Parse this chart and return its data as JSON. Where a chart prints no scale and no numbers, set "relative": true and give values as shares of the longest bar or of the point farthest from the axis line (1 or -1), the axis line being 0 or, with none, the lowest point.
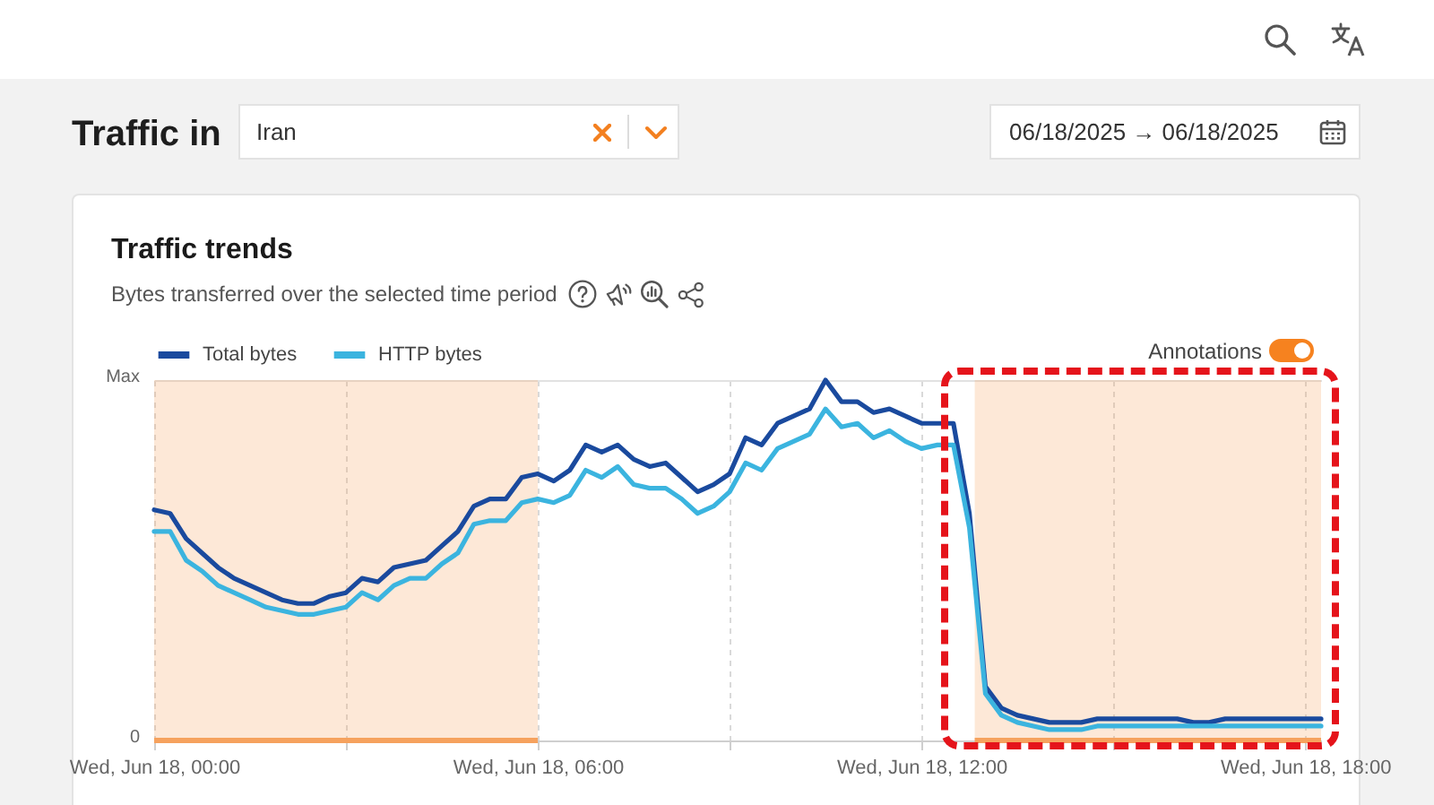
{
  "chart_data": {
    "type": "line",
    "title": "Traffic trends",
    "subtitle": "Bytes transferred over the selected time period",
    "annotations": [
      "Traffic in",
      "Iran",
      "06/18/2025 → 06/18/2025",
      "Annotations",
      "Max",
      "0"
    ],
    "relative": true,
    "x": [
      "2025-06-18T00:00",
      "2025-06-18T00:15",
      "2025-06-18T00:30",
      "2025-06-18T00:45",
      "2025-06-18T01:00",
      "2025-06-18T01:15",
      "2025-06-18T01:30",
      "2025-06-18T01:45",
      "2025-06-18T02:00",
      "2025-06-18T02:15",
      "2025-06-18T02:30",
      "2025-06-18T02:45",
      "2025-06-18T03:00",
      "2025-06-18T03:15",
      "2025-06-18T03:30",
      "2025-06-18T03:45",
      "2025-06-18T04:00",
      "2025-06-18T04:15",
      "2025-06-18T04:30",
      "2025-06-18T04:45",
      "2025-06-18T05:00",
      "2025-06-18T05:15",
      "2025-06-18T05:30",
      "2025-06-18T05:45",
      "2025-06-18T06:00",
      "2025-06-18T06:15",
      "2025-06-18T06:30",
      "2025-06-18T06:45",
      "2025-06-18T07:00",
      "2025-06-18T07:15",
      "2025-06-18T07:30",
      "2025-06-18T07:45",
      "2025-06-18T08:00",
      "2025-06-18T08:15",
      "2025-06-18T08:30",
      "2025-06-18T08:45",
      "2025-06-18T09:00",
      "2025-06-18T09:15",
      "2025-06-18T09:30",
      "2025-06-18T09:45",
      "2025-06-18T10:00",
      "2025-06-18T10:15",
      "2025-06-18T10:30",
      "2025-06-18T10:45",
      "2025-06-18T11:00",
      "2025-06-18T11:15",
      "2025-06-18T11:30",
      "2025-06-18T11:45",
      "2025-06-18T12:00",
      "2025-06-18T12:15",
      "2025-06-18T12:30",
      "2025-06-18T12:45",
      "2025-06-18T13:00",
      "2025-06-18T13:15",
      "2025-06-18T13:30",
      "2025-06-18T13:45",
      "2025-06-18T14:00",
      "2025-06-18T14:15",
      "2025-06-18T14:30",
      "2025-06-18T14:45",
      "2025-06-18T15:00",
      "2025-06-18T15:15",
      "2025-06-18T15:30",
      "2025-06-18T15:45",
      "2025-06-18T16:00",
      "2025-06-18T16:15",
      "2025-06-18T16:30",
      "2025-06-18T16:45",
      "2025-06-18T17:00",
      "2025-06-18T17:15",
      "2025-06-18T17:30",
      "2025-06-18T17:45",
      "2025-06-18T18:00",
      "2025-06-18T18:15"
    ],
    "series": [
      {
        "name": "Total bytes",
        "color": "#1a4a9e",
        "values": [
          0.64,
          0.63,
          0.56,
          0.52,
          0.48,
          0.45,
          0.43,
          0.41,
          0.39,
          0.38,
          0.38,
          0.4,
          0.41,
          0.45,
          0.44,
          0.48,
          0.49,
          0.5,
          0.54,
          0.58,
          0.65,
          0.67,
          0.67,
          0.73,
          0.74,
          0.72,
          0.75,
          0.82,
          0.8,
          0.82,
          0.78,
          0.76,
          0.77,
          0.73,
          0.69,
          0.71,
          0.74,
          0.84,
          0.82,
          0.88,
          0.9,
          0.92,
          1.0,
          0.94,
          0.94,
          0.91,
          0.92,
          0.9,
          0.88,
          0.88,
          0.88,
          0.63,
          0.15,
          0.09,
          0.07,
          0.06,
          0.05,
          0.05,
          0.05,
          0.06,
          0.06,
          0.06,
          0.06,
          0.06,
          0.06,
          0.05,
          0.05,
          0.06,
          0.06,
          0.06,
          0.06,
          0.06,
          0.06,
          0.06
        ]
      },
      {
        "name": "HTTP bytes",
        "color": "#3bb4df",
        "values": [
          0.58,
          0.58,
          0.5,
          0.47,
          0.43,
          0.41,
          0.39,
          0.37,
          0.36,
          0.35,
          0.35,
          0.36,
          0.37,
          0.41,
          0.39,
          0.43,
          0.45,
          0.45,
          0.49,
          0.52,
          0.6,
          0.61,
          0.61,
          0.66,
          0.67,
          0.66,
          0.68,
          0.75,
          0.73,
          0.76,
          0.71,
          0.7,
          0.7,
          0.67,
          0.63,
          0.65,
          0.69,
          0.77,
          0.75,
          0.81,
          0.83,
          0.85,
          0.92,
          0.87,
          0.88,
          0.84,
          0.86,
          0.83,
          0.81,
          0.82,
          0.82,
          0.59,
          0.13,
          0.07,
          0.05,
          0.04,
          0.03,
          0.03,
          0.03,
          0.04,
          0.04,
          0.04,
          0.04,
          0.04,
          0.04,
          0.04,
          0.04,
          0.04,
          0.04,
          0.04,
          0.04,
          0.04,
          0.04,
          0.04
        ]
      }
    ],
    "xlim": [
      "2025-06-18T00:00",
      "2025-06-18T18:15"
    ],
    "xticks": [
      {
        "value": "2025-06-18T00:00",
        "label": "Wed, Jun 18, 00:00"
      },
      {
        "value": "2025-06-18T03:00",
        "label": null
      },
      {
        "value": "2025-06-18T06:00",
        "label": "Wed, Jun 18, 06:00"
      },
      {
        "value": "2025-06-18T09:00",
        "label": null
      },
      {
        "value": "2025-06-18T12:00",
        "label": "Wed, Jun 18, 12:00"
      },
      {
        "value": "2025-06-18T15:00",
        "label": null
      },
      {
        "value": "2025-06-18T18:00",
        "label": "Wed, Jun 18, 18:00"
      }
    ],
    "bands": [
      {
        "axis": "x",
        "from": "2025-06-18T00:00",
        "to": "2025-06-18T06:00",
        "color": "#f6a25e"
      },
      {
        "axis": "x",
        "from": "2025-06-18T12:50",
        "to": "2025-06-18T18:15",
        "color": "#f6a25e"
      }
    ],
    "grid": true,
    "legend": "top left"
  }
}
